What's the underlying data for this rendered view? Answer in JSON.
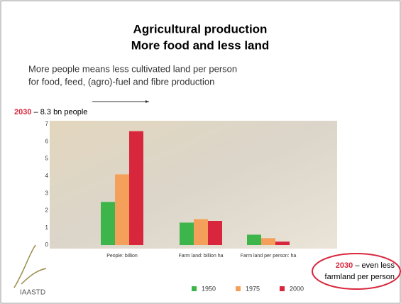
{
  "chart_data": {
    "type": "bar",
    "title": "Agricultural production",
    "subtitle": "More food and less land",
    "description": [
      "More people means less cultivated land per person",
      "for food, feed, (agro)-fuel and fibre production"
    ],
    "annotation": {
      "year": "2030",
      "text": "– 8.3 bn people"
    },
    "callout": {
      "year": "2030",
      "text": "– even less",
      "text2": "farmland per person"
    },
    "logo": "IAASTD",
    "categories": [
      "People: billion",
      "Farm land: billion ha",
      "Farm land per person: ha"
    ],
    "series": [
      {
        "name": "1950",
        "color": "#3db54a",
        "values": [
          2.5,
          1.3,
          0.6
        ]
      },
      {
        "name": "1975",
        "color": "#f5a05a",
        "values": [
          4.1,
          1.5,
          0.4
        ]
      },
      {
        "name": "2000",
        "color": "#d8263d",
        "values": [
          6.6,
          1.4,
          0.2
        ]
      }
    ],
    "ylim": [
      0,
      7
    ],
    "yticks": [
      0,
      1,
      2,
      3,
      4,
      5,
      6,
      7
    ]
  }
}
